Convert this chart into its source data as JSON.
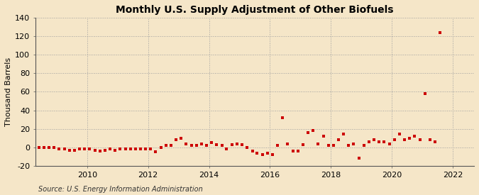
{
  "title": "Monthly U.S. Supply Adjustment of Other Biofuels",
  "ylabel": "Thousand Barrels",
  "source": "Source: U.S. Energy Information Administration",
  "background_color": "#f5e6c8",
  "plot_bg_color": "#f5e6c8",
  "dot_color": "#cc0000",
  "ylim": [
    -20,
    140
  ],
  "yticks": [
    -20,
    0,
    20,
    40,
    60,
    80,
    100,
    120,
    140
  ],
  "xlim_start": 2008.3,
  "xlim_end": 2022.7,
  "xticks": [
    2010,
    2012,
    2014,
    2016,
    2018,
    2020,
    2022
  ],
  "data_points": [
    [
      2008.25,
      0
    ],
    [
      2008.42,
      0
    ],
    [
      2008.58,
      0
    ],
    [
      2008.75,
      0
    ],
    [
      2008.92,
      0
    ],
    [
      2009.08,
      -2
    ],
    [
      2009.25,
      -2
    ],
    [
      2009.42,
      -3
    ],
    [
      2009.58,
      -3
    ],
    [
      2009.75,
      -2
    ],
    [
      2009.92,
      -2
    ],
    [
      2010.08,
      -2
    ],
    [
      2010.25,
      -3
    ],
    [
      2010.42,
      -4
    ],
    [
      2010.58,
      -3
    ],
    [
      2010.75,
      -2
    ],
    [
      2010.92,
      -3
    ],
    [
      2011.08,
      -2
    ],
    [
      2011.25,
      -2
    ],
    [
      2011.42,
      -2
    ],
    [
      2011.58,
      -2
    ],
    [
      2011.75,
      -2
    ],
    [
      2011.92,
      -2
    ],
    [
      2012.08,
      -2
    ],
    [
      2012.25,
      -5
    ],
    [
      2012.42,
      0
    ],
    [
      2012.58,
      2
    ],
    [
      2012.75,
      2
    ],
    [
      2012.92,
      8
    ],
    [
      2013.08,
      10
    ],
    [
      2013.25,
      4
    ],
    [
      2013.42,
      2
    ],
    [
      2013.58,
      2
    ],
    [
      2013.75,
      4
    ],
    [
      2013.92,
      2
    ],
    [
      2014.08,
      5
    ],
    [
      2014.25,
      3
    ],
    [
      2014.42,
      2
    ],
    [
      2014.58,
      -2
    ],
    [
      2014.75,
      3
    ],
    [
      2014.92,
      4
    ],
    [
      2015.08,
      3
    ],
    [
      2015.25,
      0
    ],
    [
      2015.42,
      -4
    ],
    [
      2015.58,
      -6
    ],
    [
      2015.75,
      -8
    ],
    [
      2015.92,
      -6
    ],
    [
      2016.08,
      -8
    ],
    [
      2016.25,
      2
    ],
    [
      2016.42,
      32
    ],
    [
      2016.58,
      4
    ],
    [
      2016.75,
      -4
    ],
    [
      2016.92,
      -4
    ],
    [
      2017.08,
      3
    ],
    [
      2017.25,
      16
    ],
    [
      2017.42,
      18
    ],
    [
      2017.58,
      4
    ],
    [
      2017.75,
      12
    ],
    [
      2017.92,
      2
    ],
    [
      2018.08,
      2
    ],
    [
      2018.25,
      8
    ],
    [
      2018.42,
      14
    ],
    [
      2018.58,
      2
    ],
    [
      2018.75,
      4
    ],
    [
      2018.92,
      -12
    ],
    [
      2019.08,
      2
    ],
    [
      2019.25,
      6
    ],
    [
      2019.42,
      8
    ],
    [
      2019.58,
      6
    ],
    [
      2019.75,
      6
    ],
    [
      2019.92,
      4
    ],
    [
      2020.08,
      8
    ],
    [
      2020.25,
      14
    ],
    [
      2020.42,
      8
    ],
    [
      2020.58,
      10
    ],
    [
      2020.75,
      12
    ],
    [
      2020.92,
      8
    ],
    [
      2021.08,
      58
    ],
    [
      2021.25,
      8
    ],
    [
      2021.42,
      6
    ],
    [
      2021.58,
      124
    ]
  ]
}
